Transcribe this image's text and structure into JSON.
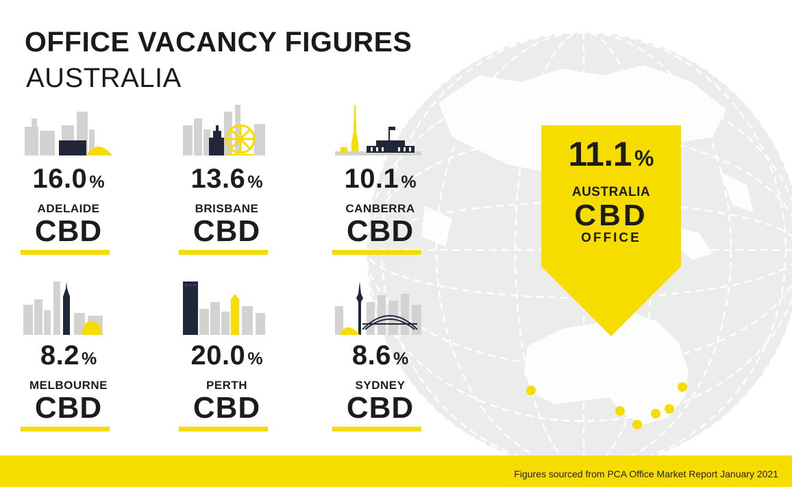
{
  "heading": {
    "title": "OFFICE VACANCY FIGURES",
    "subtitle": "AUSTRALIA"
  },
  "colors": {
    "accent_yellow": "#f7dc00",
    "text_dark": "#1c1c1c",
    "skyline_grey": "#d2d2d2",
    "skyline_navy": "#222639",
    "globe_grey": "#ebebeb"
  },
  "cities": [
    {
      "value": "16.0",
      "unit": "%",
      "city": "ADELAIDE",
      "label": "CBD",
      "skyline_icon": "adelaide-skyline-icon"
    },
    {
      "value": "13.6",
      "unit": "%",
      "city": "BRISBANE",
      "label": "CBD",
      "skyline_icon": "brisbane-skyline-icon"
    },
    {
      "value": "10.1",
      "unit": "%",
      "city": "CANBERRA",
      "label": "CBD",
      "skyline_icon": "canberra-skyline-icon"
    },
    {
      "value": "8.2",
      "unit": "%",
      "city": "MELBOURNE",
      "label": "CBD",
      "skyline_icon": "melbourne-skyline-icon"
    },
    {
      "value": "20.0",
      "unit": "%",
      "city": "PERTH",
      "label": "CBD",
      "skyline_icon": "perth-skyline-icon"
    },
    {
      "value": "8.6",
      "unit": "%",
      "city": "SYDNEY",
      "label": "CBD",
      "skyline_icon": "sydney-skyline-icon"
    }
  ],
  "national": {
    "value": "11.1",
    "unit": "%",
    "line1": "AUSTRALIA",
    "line2": "CBD",
    "line3": "OFFICE"
  },
  "footer": {
    "source": "Figures sourced from PCA Office Market Report January 2021"
  }
}
